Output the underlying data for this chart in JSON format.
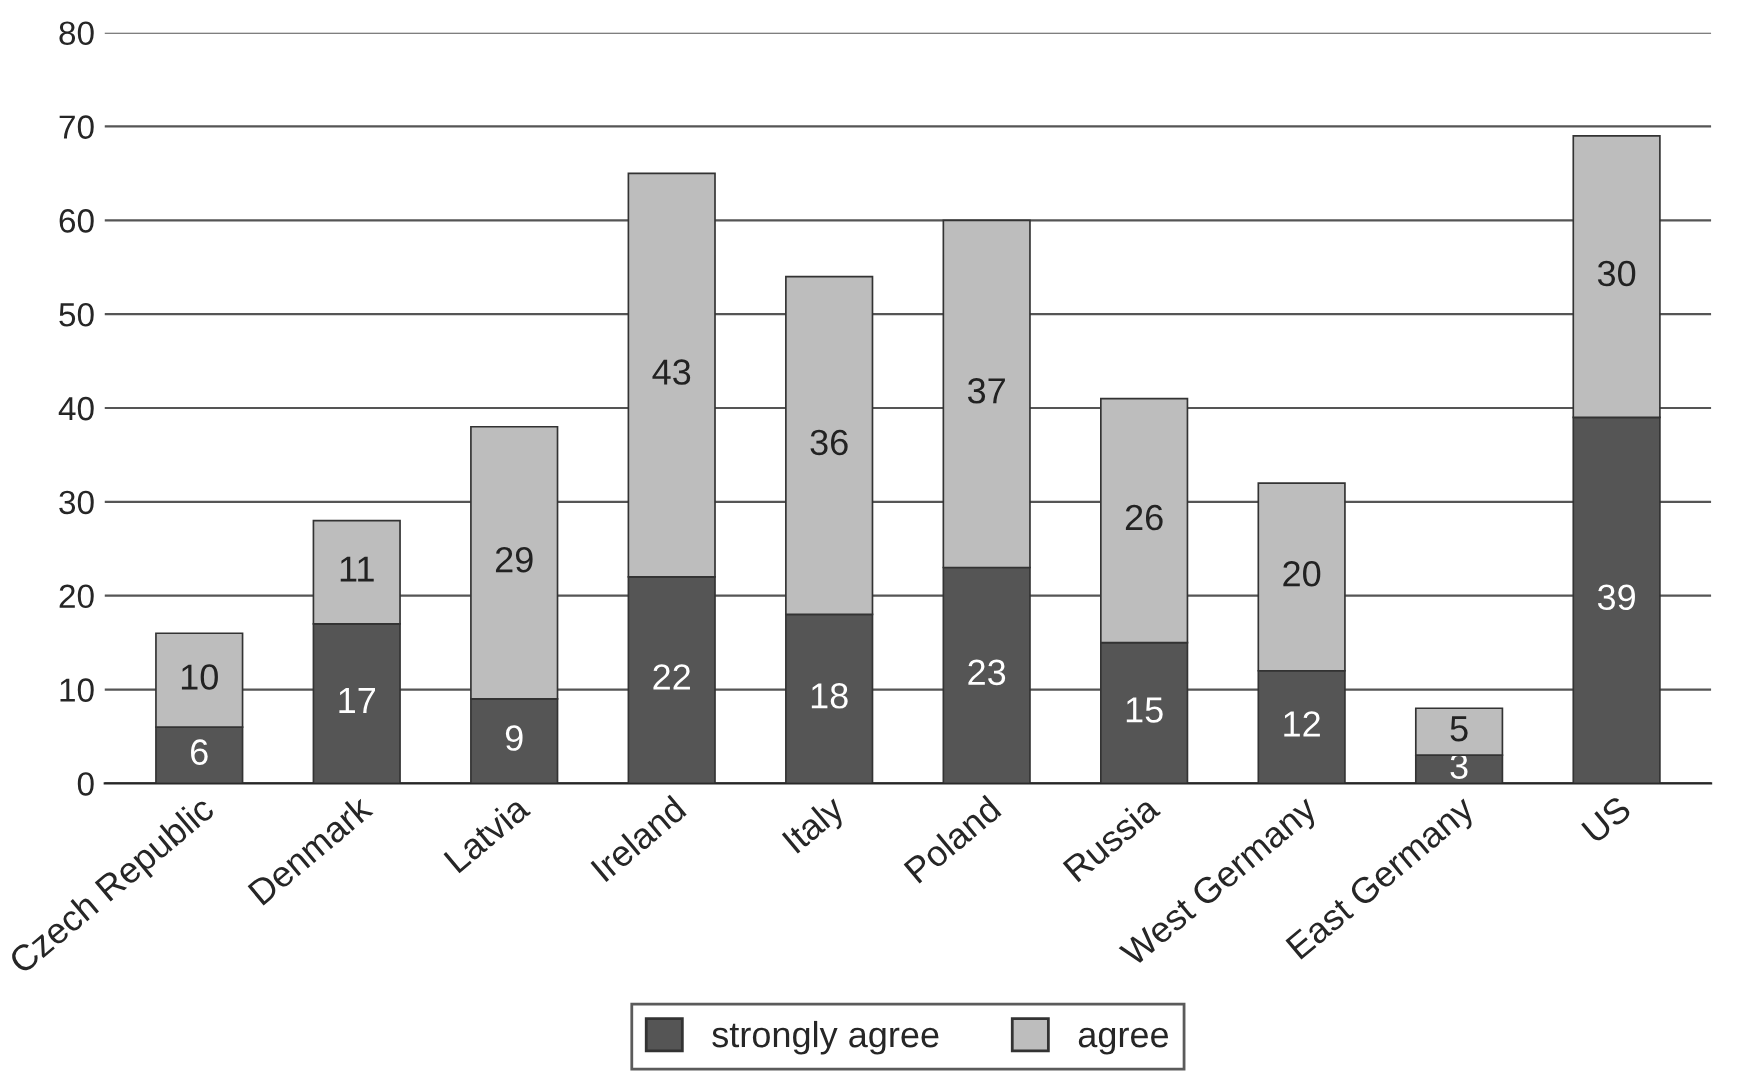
{
  "chart_data": {
    "type": "bar",
    "stacked": true,
    "categories": [
      "Czech Republic",
      "Denmark",
      "Latvia",
      "Ireland",
      "Italy",
      "Poland",
      "Russia",
      "West Germany",
      "East Germany",
      "US"
    ],
    "series": [
      {
        "name": "strongly agree",
        "color": "#555555",
        "values": [
          6,
          17,
          9,
          22,
          18,
          23,
          15,
          12,
          3,
          39
        ]
      },
      {
        "name": "agree",
        "color": "#bdbdbd",
        "values": [
          10,
          11,
          29,
          43,
          36,
          37,
          26,
          20,
          5,
          30
        ]
      }
    ],
    "ylim": [
      0,
      80
    ],
    "yticks": [
      0,
      10,
      20,
      30,
      40,
      50,
      60,
      70,
      80
    ],
    "grid": "y",
    "legend": "bottom",
    "data_labels": true
  }
}
